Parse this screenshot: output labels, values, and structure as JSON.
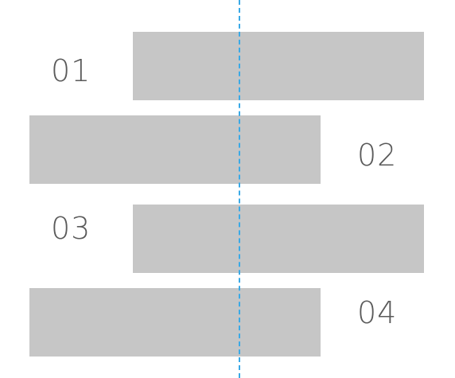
{
  "rows": [
    {
      "label": "01"
    },
    {
      "label": "02"
    },
    {
      "label": "03"
    },
    {
      "label": "04"
    }
  ],
  "colors": {
    "block": "#c6c6c6",
    "guide": "#3aa9e6",
    "label": "#5a5a5a"
  }
}
